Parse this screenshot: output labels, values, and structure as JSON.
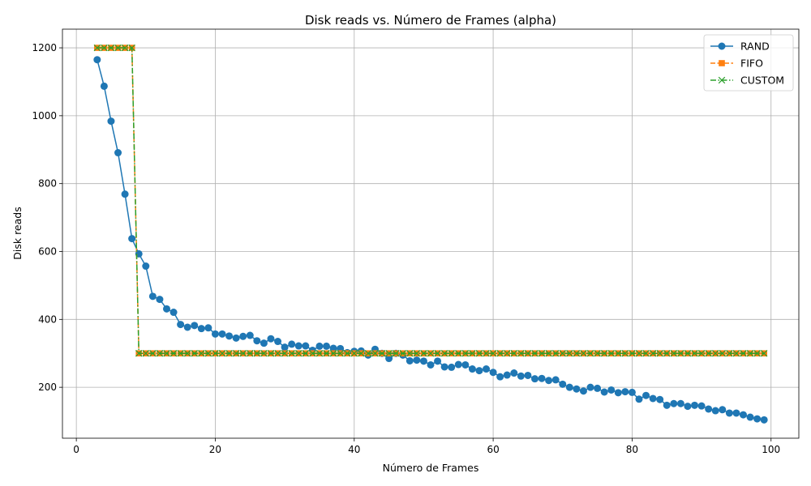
{
  "chart_data": {
    "type": "line",
    "title": "Disk reads vs. Número de Frames (alpha)",
    "xlabel": "Número de Frames",
    "ylabel": "Disk reads",
    "xlim": [
      -2,
      104
    ],
    "ylim": [
      50,
      1255
    ],
    "xticks": [
      0,
      20,
      40,
      60,
      80,
      100
    ],
    "yticks": [
      200,
      400,
      600,
      800,
      1000,
      1200
    ],
    "grid": true,
    "legend_position": "top-right",
    "x": [
      3,
      4,
      5,
      6,
      7,
      8,
      9,
      10,
      11,
      12,
      13,
      14,
      15,
      16,
      17,
      18,
      19,
      20,
      21,
      22,
      23,
      24,
      25,
      26,
      27,
      28,
      29,
      30,
      31,
      32,
      33,
      34,
      35,
      36,
      37,
      38,
      39,
      40,
      41,
      42,
      43,
      44,
      45,
      46,
      47,
      48,
      49,
      50,
      51,
      52,
      53,
      54,
      55,
      56,
      57,
      58,
      59,
      60,
      61,
      62,
      63,
      64,
      65,
      66,
      67,
      68,
      69,
      70,
      71,
      72,
      73,
      74,
      75,
      76,
      77,
      78,
      79,
      80,
      81,
      82,
      83,
      84,
      85,
      86,
      87,
      88,
      89,
      90,
      91,
      92,
      93,
      94,
      95,
      96,
      97,
      98,
      99
    ],
    "series": [
      {
        "name": "RAND",
        "color": "#1f77b4",
        "marker": "circle",
        "linestyle": "solid",
        "values": [
          1165,
          1087,
          984,
          891,
          769,
          638,
          593,
          557,
          468,
          459,
          431,
          421,
          385,
          377,
          382,
          373,
          375,
          357,
          357,
          351,
          345,
          350,
          353,
          337,
          330,
          343,
          335,
          318,
          327,
          322,
          322,
          309,
          321,
          321,
          315,
          314,
          302,
          306,
          307,
          295,
          312,
          300,
          285,
          300,
          295,
          278,
          280,
          277,
          266,
          277,
          260,
          259,
          267,
          266,
          254,
          249,
          254,
          244,
          231,
          236,
          242,
          233,
          235,
          225,
          226,
          220,
          222,
          209,
          200,
          195,
          189,
          200,
          197,
          186,
          192,
          184,
          187,
          185,
          165,
          176,
          167,
          164,
          147,
          152,
          152,
          144,
          147,
          145,
          136,
          131,
          134,
          124,
          124,
          119,
          112,
          107,
          104
        ]
      },
      {
        "name": "FIFO",
        "color": "#ff7f0e",
        "marker": "square",
        "linestyle": "dashed",
        "values": [
          1200,
          1200,
          1200,
          1200,
          1200,
          1200,
          300,
          300,
          300,
          300,
          300,
          300,
          300,
          300,
          300,
          300,
          300,
          300,
          300,
          300,
          300,
          300,
          300,
          300,
          300,
          300,
          300,
          300,
          300,
          300,
          300,
          300,
          300,
          300,
          300,
          300,
          300,
          300,
          300,
          300,
          300,
          300,
          300,
          300,
          300,
          300,
          300,
          300,
          300,
          300,
          300,
          300,
          300,
          300,
          300,
          300,
          300,
          300,
          300,
          300,
          300,
          300,
          300,
          300,
          300,
          300,
          300,
          300,
          300,
          300,
          300,
          300,
          300,
          300,
          300,
          300,
          300,
          300,
          300,
          300,
          300,
          300,
          300,
          300,
          300,
          300,
          300,
          300,
          300,
          300,
          300,
          300,
          300,
          300,
          300,
          300,
          300
        ]
      },
      {
        "name": "CUSTOM",
        "color": "#2ca02c",
        "marker": "x",
        "linestyle": "dashdot",
        "values": [
          1200,
          1200,
          1200,
          1200,
          1200,
          1200,
          300,
          300,
          300,
          300,
          300,
          300,
          300,
          300,
          300,
          300,
          300,
          300,
          300,
          300,
          300,
          300,
          300,
          300,
          300,
          300,
          300,
          300,
          300,
          300,
          300,
          300,
          300,
          300,
          300,
          300,
          300,
          300,
          300,
          300,
          300,
          300,
          300,
          300,
          300,
          300,
          300,
          300,
          300,
          300,
          300,
          300,
          300,
          300,
          300,
          300,
          300,
          300,
          300,
          300,
          300,
          300,
          300,
          300,
          300,
          300,
          300,
          300,
          300,
          300,
          300,
          300,
          300,
          300,
          300,
          300,
          300,
          300,
          300,
          300,
          300,
          300,
          300,
          300,
          300,
          300,
          300,
          300,
          300,
          300,
          300,
          300,
          300,
          300,
          300,
          300,
          300
        ]
      }
    ]
  }
}
